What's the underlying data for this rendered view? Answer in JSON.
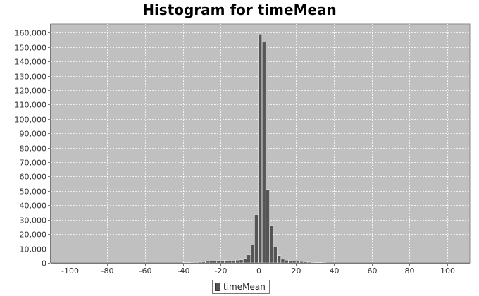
{
  "chart_data": {
    "type": "bar",
    "title": "Histogram for timeMean",
    "xlabel": "",
    "ylabel": "",
    "xlim": [
      -110,
      112
    ],
    "ylim": [
      0,
      166000
    ],
    "x_ticks": [
      -100,
      -80,
      -60,
      -40,
      -20,
      0,
      20,
      40,
      60,
      80,
      100
    ],
    "y_ticks": [
      0,
      10000,
      20000,
      30000,
      40000,
      50000,
      60000,
      70000,
      80000,
      90000,
      100000,
      110000,
      120000,
      130000,
      140000,
      150000,
      160000
    ],
    "grid": true,
    "legend": "bottom-center",
    "bin_width": 1.85,
    "series": [
      {
        "name": "timeMean",
        "color": "#555555",
        "x": [
          -40,
          -38,
          -36,
          -34,
          -32,
          -30,
          -28,
          -26,
          -24,
          -22,
          -20,
          -18,
          -16,
          -14,
          -12,
          -10,
          -8,
          -6,
          -4,
          -2,
          0,
          2,
          4,
          6,
          8,
          10,
          12,
          14,
          16,
          18,
          20,
          22,
          24,
          26,
          28,
          30,
          32,
          34
        ],
        "values": [
          100,
          200,
          300,
          400,
          500,
          700,
          1000,
          1200,
          1400,
          1500,
          1600,
          1600,
          1700,
          1700,
          1800,
          2100,
          3000,
          5500,
          12500,
          33500,
          159000,
          154000,
          51000,
          26000,
          11000,
          5000,
          2500,
          1800,
          1500,
          1300,
          1100,
          900,
          700,
          500,
          300,
          200,
          100,
          50
        ]
      }
    ]
  }
}
